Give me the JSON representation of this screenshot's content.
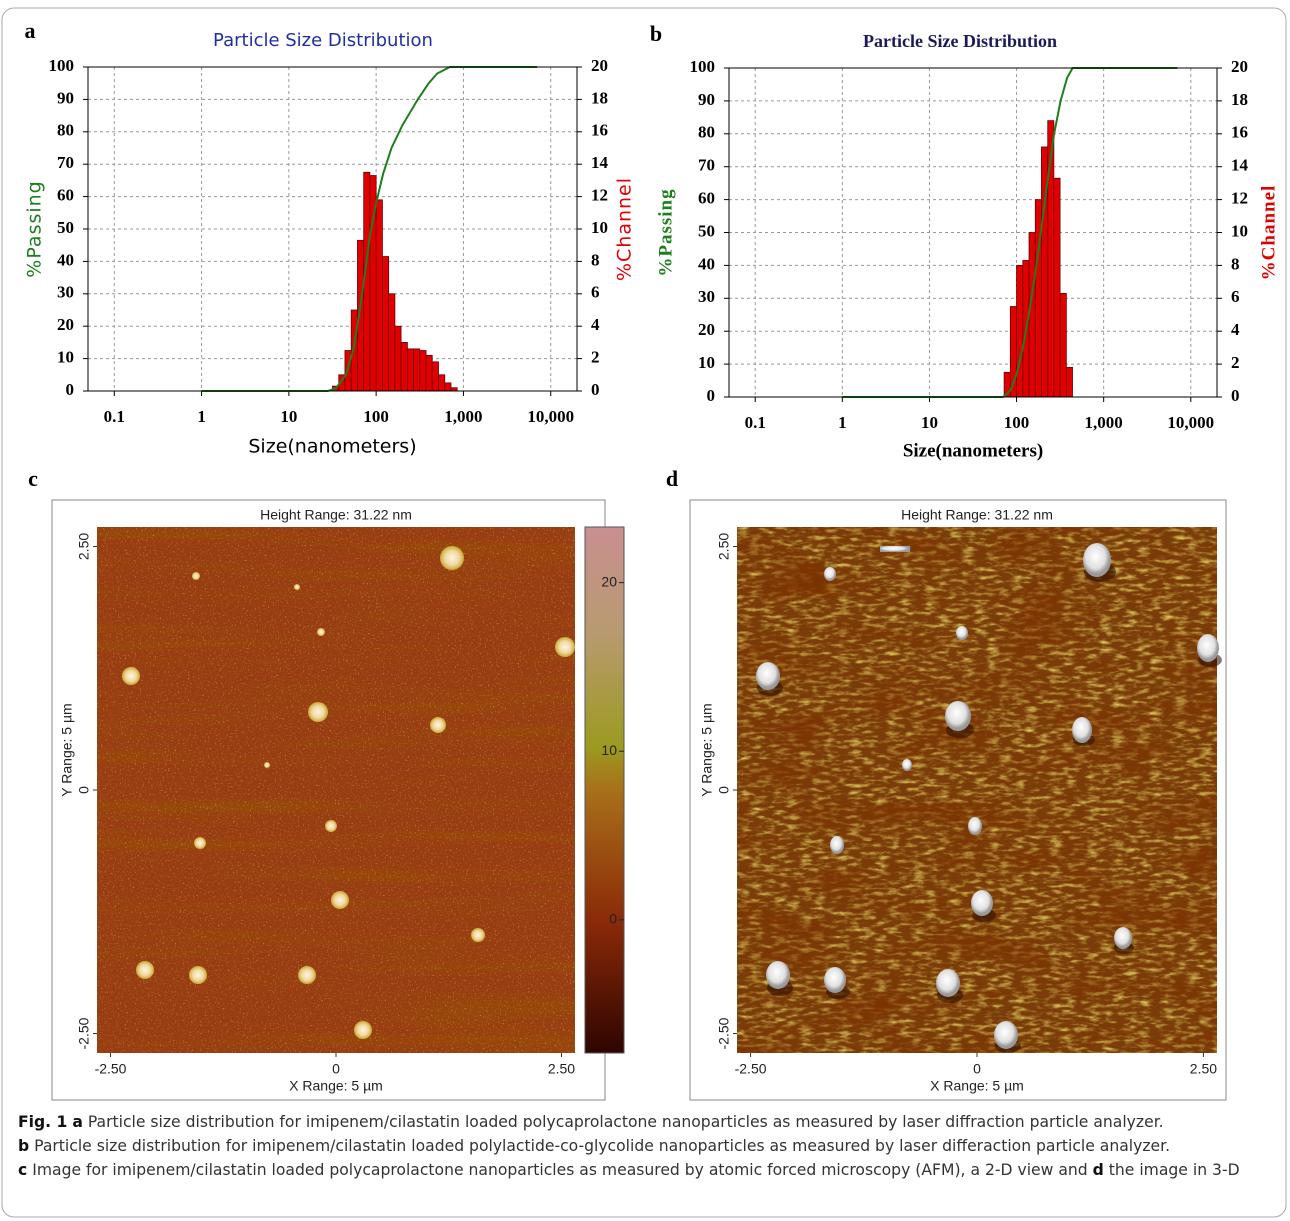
{
  "chart_data": [
    {
      "type": "histogram",
      "label": "a",
      "title": "Particle Size Distribution",
      "xlabel": "Size(nanometers)",
      "ylabel": "%Passing",
      "y2label": "%Channel",
      "xscale": "log",
      "xlim": [
        0.05,
        20000
      ],
      "xticks": [
        0.1,
        1,
        10,
        100,
        {
          "value": 1000,
          "label": "1,000"
        },
        {
          "value": 10000,
          "label": "10,000"
        }
      ],
      "ylim": [
        0,
        100
      ],
      "yticks": [
        0,
        10,
        20,
        30,
        40,
        50,
        60,
        70,
        80,
        90,
        100
      ],
      "y2lim": [
        0,
        20
      ],
      "y2ticks": [
        0,
        2,
        4,
        6,
        8,
        10,
        12,
        14,
        16,
        18,
        20
      ],
      "grid": true,
      "bins": [
        31.6,
        37.3,
        43.9,
        51.8,
        61.1,
        72.0,
        84.8,
        100,
        118,
        139,
        164,
        193,
        228,
        268,
        316,
        373,
        439,
        518,
        611,
        720,
        848
      ],
      "series": [
        {
          "color": "#e00000",
          "axis": "y2",
          "values": [
            0.3,
            1,
            2.5,
            5,
            9.3,
            13.5,
            13.3,
            11.8,
            8.3,
            6,
            4,
            3,
            2.6,
            2.6,
            2.5,
            2.2,
            1.8,
            1,
            0.5,
            0.2
          ]
        },
        {
          "color": "#1e7d1e",
          "x": [
            1,
            28,
            35,
            45,
            55,
            65,
            75,
            85,
            100,
            120,
            150,
            200,
            300,
            400,
            500,
            700,
            7000
          ],
          "values": [
            0,
            0,
            1,
            5,
            13,
            25,
            37,
            48,
            58,
            67,
            75,
            82,
            90,
            95,
            98,
            100,
            100
          ]
        }
      ]
    },
    {
      "type": "histogram",
      "label": "b",
      "title": "Particle Size Distribution",
      "xlabel": "Size(nanometers)",
      "ylabel": "%Passing",
      "y2label": "%Channel",
      "xscale": "log",
      "xlim": [
        0.05,
        20000
      ],
      "xticks": [
        0.1,
        1,
        10,
        100,
        {
          "value": 1000,
          "label": "1,000"
        },
        {
          "value": 10000,
          "label": "10,000"
        }
      ],
      "ylim": [
        0,
        100
      ],
      "yticks": [
        0,
        10,
        20,
        30,
        40,
        50,
        60,
        70,
        80,
        90,
        100
      ],
      "y2lim": [
        0,
        20
      ],
      "y2ticks": [
        0,
        2,
        4,
        6,
        8,
        10,
        12,
        14,
        16,
        18,
        20
      ],
      "grid": true,
      "bins": [
        72.0,
        84.8,
        100,
        118,
        139,
        164,
        193,
        228,
        268,
        316,
        373,
        439
      ],
      "series": [
        {
          "color": "#e00000",
          "axis": "y2",
          "values": [
            1.5,
            5.5,
            8,
            8.3,
            10,
            12,
            15.2,
            16.8,
            13.3,
            6.3,
            1.8
          ]
        },
        {
          "color": "#1e7d1e",
          "x": [
            1,
            70,
            85,
            100,
            120,
            140,
            165,
            190,
            230,
            270,
            320,
            380,
            440,
            7000
          ],
          "values": [
            0,
            0,
            2,
            7,
            16,
            26,
            38,
            50,
            67,
            80,
            90,
            97,
            100,
            100
          ]
        }
      ]
    }
  ],
  "panels": [
    {
      "label": "c",
      "title": "Height Range: 31.22 nm",
      "xlabel": "X Range: 5 µm",
      "ylabel": "Y Range: 5 µm",
      "xlim": [
        -2.65,
        2.65
      ],
      "ylim": [
        -2.7,
        2.7
      ],
      "xticks": [
        {
          "value": -2.5,
          "label": "-2.50"
        },
        0,
        {
          "value": 2.5,
          "label": "2.50"
        }
      ],
      "yticks": [
        {
          "value": -2.5,
          "label": "-2.50"
        },
        0,
        {
          "value": 2.5,
          "label": "2.50"
        }
      ],
      "colorbar": {
        "lim": [
          -7.9,
          23.3
        ],
        "ticks": [
          0,
          10,
          20
        ]
      }
    },
    {
      "label": "d",
      "title": "Height Range: 31.22 nm",
      "xlabel": "X Range: 5 µm",
      "ylabel": "Y Range: 5 µm",
      "xlim": [
        -2.65,
        2.65
      ],
      "ylim": [
        -2.7,
        2.7
      ],
      "xticks": [
        {
          "value": -2.5,
          "label": "-2.50"
        },
        0,
        {
          "value": 2.5,
          "label": "2.50"
        }
      ],
      "yticks": [
        {
          "value": -2.5,
          "label": "-2.50"
        },
        0,
        {
          "value": 2.5,
          "label": "2.50"
        }
      ]
    }
  ],
  "caption": {
    "label": "Fig. 1",
    "lines": [
      [
        {
          "letter": "a",
          "text": "Particle size distribution for imipenem/cilastatin loaded polycaprolactone nanoparticles as measured by laser diffraction particle analyzer."
        }
      ],
      [
        {
          "letter": "b",
          "text": "Particle size distribution for imipenem/cilastatin loaded polylactide-co-glycolide nanoparticles as measured by laser differaction particle analyzer."
        }
      ],
      [
        {
          "letter": "c",
          "text": "Image for imipenem/cilastatin loaded polycaprolactone nanoparticles as measured by atomic forced microscopy (AFM), a 2-D view and"
        },
        {
          "letter": "d",
          "text": "the image in 3-D"
        }
      ]
    ]
  }
}
